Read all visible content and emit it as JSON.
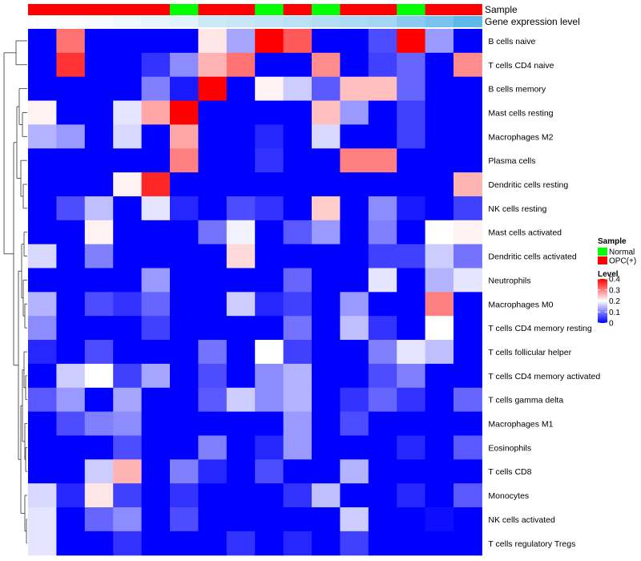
{
  "chart_data": {
    "type": "heatmap",
    "title": "",
    "annotation_rows": [
      {
        "name": "Sample"
      },
      {
        "name": "Gene expression level"
      }
    ],
    "columns": [
      {
        "sample": "OPC(+)",
        "expression_rank": 0.0
      },
      {
        "sample": "OPC(+)",
        "expression_rank": 0.03
      },
      {
        "sample": "OPC(+)",
        "expression_rank": 0.06
      },
      {
        "sample": "OPC(+)",
        "expression_rank": 0.1
      },
      {
        "sample": "OPC(+)",
        "expression_rank": 0.14
      },
      {
        "sample": "Normal",
        "expression_rank": 0.18
      },
      {
        "sample": "OPC(+)",
        "expression_rank": 0.3
      },
      {
        "sample": "OPC(+)",
        "expression_rank": 0.33
      },
      {
        "sample": "Normal",
        "expression_rank": 0.36
      },
      {
        "sample": "OPC(+)",
        "expression_rank": 0.4
      },
      {
        "sample": "Normal",
        "expression_rank": 0.45
      },
      {
        "sample": "OPC(+)",
        "expression_rank": 0.5
      },
      {
        "sample": "OPC(+)",
        "expression_rank": 0.55
      },
      {
        "sample": "Normal",
        "expression_rank": 0.7
      },
      {
        "sample": "OPC(+)",
        "expression_rank": 0.8
      },
      {
        "sample": "OPC(+)",
        "expression_rank": 0.95
      }
    ],
    "rows": [
      "B cells naive",
      "T cells CD4 naive",
      "B cells memory",
      "Mast cells resting",
      "Macrophages M2",
      "Plasma cells",
      "Dendritic cells resting",
      "NK cells resting",
      "Mast cells activated",
      "Dendritic cells activated",
      "Neutrophils",
      "Macrophages M0",
      "T cells CD4 memory resting",
      "T cells follicular helper",
      "T cells CD4 memory activated",
      "T cells gamma delta",
      "Macrophages M1",
      "Eosinophils",
      "T cells CD8",
      "Monocytes",
      "NK cells activated",
      "T cells regulatory  Tregs"
    ],
    "values": [
      [
        0,
        0.31,
        0,
        0,
        0,
        0,
        0.22,
        0.13,
        0.4,
        0.33,
        0,
        0,
        0.06,
        0.4,
        0.12,
        0
      ],
      [
        0,
        0.36,
        0,
        0,
        0.04,
        0.11,
        0.26,
        0.31,
        0,
        0,
        0.29,
        0,
        0.05,
        0.08,
        0,
        0.29
      ],
      [
        0,
        0,
        0,
        0,
        0.1,
        0.02,
        0.4,
        0,
        0.21,
        0.16,
        0.07,
        0.25,
        0.25,
        0.08,
        0,
        0
      ],
      [
        0.21,
        0,
        0,
        0.18,
        0.27,
        0.4,
        0,
        0,
        0,
        0,
        0.25,
        0.12,
        0,
        0.05,
        0,
        0
      ],
      [
        0.14,
        0.12,
        0,
        0.17,
        0,
        0.27,
        0,
        0,
        0.03,
        0,
        0.17,
        0,
        0,
        0.05,
        0,
        0
      ],
      [
        0,
        0,
        0,
        0,
        0,
        0.3,
        0,
        0,
        0.04,
        0,
        0,
        0.3,
        0.3,
        0,
        0,
        0
      ],
      [
        0,
        0,
        0,
        0.21,
        0.37,
        0,
        0,
        0,
        0,
        0,
        0,
        0,
        0,
        0,
        0,
        0.26
      ],
      [
        0,
        0.06,
        0.15,
        0,
        0.18,
        0.03,
        0,
        0.06,
        0.04,
        0,
        0.24,
        0,
        0.11,
        0.02,
        0,
        0.05
      ],
      [
        0,
        0,
        0.21,
        0,
        0,
        0,
        0.09,
        0.19,
        0,
        0.07,
        0.12,
        0,
        0.1,
        0,
        0.2,
        0.21
      ],
      [
        0.17,
        0,
        0.1,
        0,
        0,
        0,
        0,
        0.23,
        0,
        0,
        0,
        0,
        0.05,
        0.05,
        0.16,
        0.09
      ],
      [
        0,
        0,
        0,
        0,
        0.12,
        0,
        0,
        0,
        0,
        0.08,
        0,
        0,
        0.18,
        0,
        0.14,
        0.18
      ],
      [
        0.14,
        0,
        0.06,
        0.04,
        0.08,
        0,
        0,
        0.16,
        0.03,
        0.05,
        0,
        0.12,
        0,
        0,
        0.3,
        0
      ],
      [
        0.11,
        0,
        0,
        0,
        0.05,
        0,
        0,
        0,
        0,
        0.09,
        0,
        0.15,
        0.04,
        0,
        0.2,
        0
      ],
      [
        0.03,
        0,
        0.06,
        0,
        0,
        0,
        0.09,
        0,
        0.2,
        0.05,
        0,
        0,
        0.1,
        0.18,
        0.15,
        0
      ],
      [
        0,
        0.16,
        0.2,
        0.05,
        0.13,
        0,
        0.06,
        0,
        0.11,
        0.14,
        0,
        0,
        0.06,
        0.1,
        0,
        0
      ],
      [
        0.07,
        0.12,
        0,
        0.13,
        0,
        0,
        0.07,
        0.16,
        0.11,
        0.14,
        0,
        0.04,
        0.08,
        0.04,
        0,
        0.08
      ],
      [
        0,
        0.06,
        0.1,
        0.11,
        0,
        0,
        0,
        0,
        0,
        0.12,
        0,
        0.06,
        0,
        0,
        0,
        0
      ],
      [
        0,
        0,
        0,
        0.06,
        0,
        0,
        0.1,
        0,
        0.03,
        0.12,
        0,
        0,
        0,
        0.03,
        0,
        0.07
      ],
      [
        0,
        0,
        0.16,
        0.26,
        0,
        0.1,
        0.03,
        0,
        0.06,
        0,
        0,
        0.14,
        0,
        0,
        0,
        0
      ],
      [
        0.17,
        0.03,
        0.22,
        0.05,
        0,
        0.04,
        0,
        0,
        0,
        0.04,
        0.15,
        0,
        0,
        0.03,
        0,
        0.07
      ],
      [
        0.18,
        0,
        0.08,
        0.11,
        0,
        0.06,
        0,
        0,
        0,
        0,
        0,
        0.16,
        0,
        0,
        0.01,
        0
      ],
      [
        0.18,
        0,
        0,
        0.04,
        0,
        0,
        0,
        0.04,
        0,
        0.03,
        0,
        0.05,
        0,
        0,
        0,
        0
      ]
    ],
    "legend": {
      "sample_title": "Sample",
      "sample_entries": [
        {
          "label": "Normal",
          "color": "#00ff00"
        },
        {
          "label": "OPC(+)",
          "color": "#ff0000"
        }
      ],
      "level_title": "Level",
      "level_ticks": [
        "0",
        "0.1",
        "0.2",
        "0.3",
        "0.4"
      ],
      "level_tick_values": [
        0,
        0.1,
        0.2,
        0.3,
        0.4
      ],
      "level_range": [
        0,
        0.4
      ]
    },
    "color_scale": {
      "low": "#0000ff",
      "mid": "#ffffff",
      "high": "#ff0000",
      "mid_value": 0.2
    },
    "expression_bar_colors": {
      "low": "#ffffff",
      "high": "#56b4e9"
    }
  }
}
